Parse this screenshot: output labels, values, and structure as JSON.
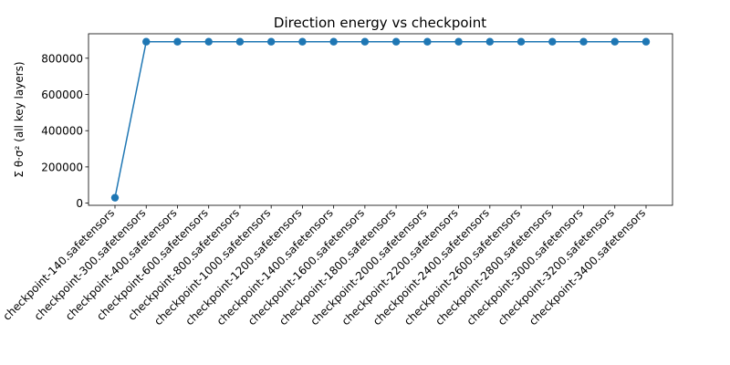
{
  "chart_data": {
    "type": "line",
    "title": "Direction energy vs checkpoint",
    "xlabel": "",
    "ylabel": "Σ θ·σ² (all key layers)",
    "categories": [
      "checkpoint-140.safetensors",
      "checkpoint-300.safetensors",
      "checkpoint-400.safetensors",
      "checkpoint-600.safetensors",
      "checkpoint-800.safetensors",
      "checkpoint-1000.safetensors",
      "checkpoint-1200.safetensors",
      "checkpoint-1400.safetensors",
      "checkpoint-1600.safetensors",
      "checkpoint-1800.safetensors",
      "checkpoint-2000.safetensors",
      "checkpoint-2200.safetensors",
      "checkpoint-2400.safetensors",
      "checkpoint-2600.safetensors",
      "checkpoint-2800.safetensors",
      "checkpoint-3000.safetensors",
      "checkpoint-3200.safetensors",
      "checkpoint-3400.safetensors"
    ],
    "values": [
      30000,
      891000,
      891000,
      891000,
      891000,
      891000,
      891000,
      891000,
      891000,
      891000,
      891000,
      891000,
      891000,
      891000,
      891000,
      891000,
      891000,
      891000
    ],
    "yticks": [
      0,
      200000,
      400000,
      600000,
      800000
    ],
    "ytick_labels": [
      "0",
      "200000",
      "400000",
      "600000",
      "800000"
    ],
    "ylim": [
      -12000,
      935000
    ],
    "grid": false,
    "series_color": "#1f77b4",
    "marker": "circle"
  }
}
